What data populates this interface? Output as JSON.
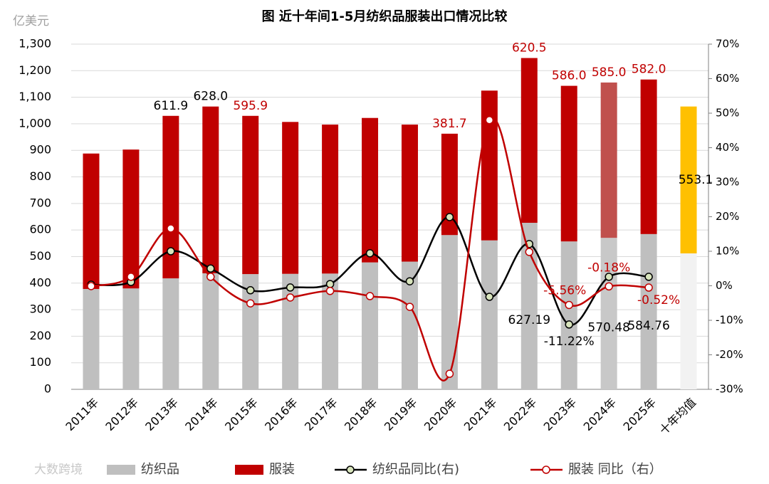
{
  "chart_data": {
    "type": "bar",
    "title": "图   近十年间1-5月纺织品服装出口情况比较",
    "y_label": "亿美元",
    "watermark": "大数跨境",
    "categories": [
      "2011年",
      "2012年",
      "2013年",
      "2014年",
      "2015年",
      "2016年",
      "2017年",
      "2018年",
      "2019年",
      "2020年",
      "2021年",
      "2022年",
      "2023年",
      "2024年",
      "2025年",
      "十年均值"
    ],
    "ylim": [
      0,
      1300
    ],
    "yticks": [
      0,
      100,
      200,
      300,
      400,
      500,
      600,
      700,
      800,
      900,
      {
        "value": 1000,
        "label": "1,000"
      },
      {
        "value": 1100,
        "label": "1,100"
      },
      {
        "value": 1200,
        "label": "1,200"
      },
      {
        "value": 1300,
        "label": "1,300"
      }
    ],
    "y2lim": [
      -30,
      70
    ],
    "y2ticks": [
      {
        "value": -30,
        "label": "-30%"
      },
      {
        "value": -20,
        "label": "-20%"
      },
      {
        "value": -10,
        "label": "-10%"
      },
      {
        "value": 0,
        "label": "0%"
      },
      {
        "value": 10,
        "label": "10%"
      },
      {
        "value": 20,
        "label": "20%"
      },
      {
        "value": 30,
        "label": "30%"
      },
      {
        "value": 40,
        "label": "40%"
      },
      {
        "value": 50,
        "label": "50%"
      },
      {
        "value": 60,
        "label": "60%"
      },
      {
        "value": 70,
        "label": "70%"
      }
    ],
    "series": [
      {
        "name": "纺织品",
        "kind": "bar",
        "color": "#bfbfbf",
        "colors": [
          "#bfbfbf",
          "#bfbfbf",
          "#bfbfbf",
          "#bfbfbf",
          "#bfbfbf",
          "#bfbfbf",
          "#bfbfbf",
          "#bfbfbf",
          "#bfbfbf",
          "#bfbfbf",
          "#bfbfbf",
          "#bfbfbf",
          "#bfbfbf",
          "#c8c8c8",
          "#bfbfbf",
          "#f2f2f2"
        ],
        "values": [
          378,
          380,
          418,
          437,
          434,
          435,
          436,
          478,
          481,
          581,
          561,
          627.19,
          557,
          570.48,
          584.76,
          512
        ],
        "value_labels": [
          null,
          null,
          null,
          null,
          null,
          null,
          null,
          null,
          null,
          null,
          null,
          "627.19",
          null,
          "570.48",
          "584.76",
          null
        ],
        "label_color": "#000000"
      },
      {
        "name": "服装",
        "kind": "bar",
        "color": "#c00000",
        "colors": [
          "#c00000",
          "#c00000",
          "#c00000",
          "#c00000",
          "#c00000",
          "#c00000",
          "#c00000",
          "#c00000",
          "#c00000",
          "#c00000",
          "#c00000",
          "#c00000",
          "#c00000",
          "#c0504d",
          "#c00000",
          "#ffc000"
        ],
        "values": [
          510,
          523,
          611.9,
          628.0,
          595.9,
          572,
          561,
          544,
          516,
          381.7,
          564,
          620.5,
          586.0,
          585.0,
          582.0,
          553.1
        ],
        "value_labels": [
          null,
          null,
          "611.9",
          "628.0",
          "595.9",
          null,
          null,
          null,
          null,
          "381.7",
          null,
          "620.5",
          "586.0",
          "585.0",
          "582.0",
          "553.1"
        ],
        "label_colors": [
          "#000000",
          "#000000",
          "#000000",
          "#000000",
          "#c00000",
          "#c00000",
          "#c00000",
          "#c00000",
          "#c00000",
          "#c00000",
          "#c00000",
          "#c00000",
          "#c00000",
          "#c00000",
          "#c00000",
          "#000000"
        ]
      },
      {
        "name": "纺织品同比(右)",
        "kind": "line",
        "axis": "y2",
        "color": "#000000",
        "marker_fill": "#d8e4bc",
        "values": [
          0.3,
          1.1,
          10.0,
          5.0,
          -1.3,
          -0.5,
          0.5,
          9.4,
          1.3,
          19.9,
          -3.2,
          12.1,
          -11.22,
          2.6,
          2.6,
          null
        ],
        "value_labels": [
          null,
          null,
          null,
          null,
          null,
          null,
          null,
          null,
          null,
          null,
          null,
          null,
          "-11.22%",
          null,
          null,
          null
        ],
        "label_color": "#000000"
      },
      {
        "name": "服装 同比（右）",
        "kind": "line",
        "axis": "y2",
        "color": "#c00000",
        "marker_fill": "#ffffff",
        "values": [
          -0.1,
          2.6,
          16.6,
          2.6,
          -5.1,
          -3.4,
          -1.5,
          -3.0,
          -6.1,
          -25.5,
          48.0,
          9.8,
          -5.56,
          -0.18,
          -0.52,
          null
        ],
        "value_labels": [
          null,
          null,
          null,
          null,
          null,
          null,
          null,
          null,
          null,
          null,
          null,
          null,
          "-5.56%",
          "-0.18%",
          "-0.52%",
          null
        ],
        "label_color": "#c00000"
      }
    ]
  }
}
